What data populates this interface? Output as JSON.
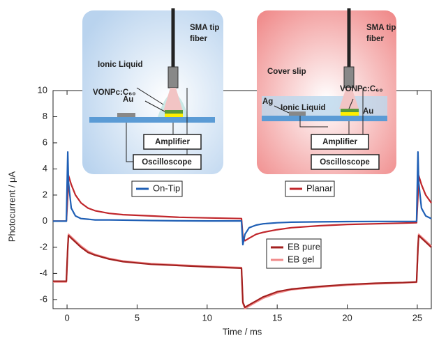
{
  "chart_data": {
    "type": "line",
    "x_label": "Time / ms",
    "y_label": "Photocurrent / μA",
    "xlim": [
      -1,
      26
    ],
    "ylim": [
      -6.7,
      10
    ],
    "xticks": [
      0,
      5,
      10,
      15,
      20,
      25
    ],
    "yticks": [
      -6,
      -4,
      -2,
      0,
      2,
      4,
      6,
      8,
      10
    ],
    "x": [
      -1,
      -0.05,
      0.05,
      0.1,
      0.3,
      0.6,
      1,
      1.5,
      2,
      3,
      4,
      6,
      8,
      10,
      12.45,
      12.55,
      12.7,
      13,
      13.5,
      14,
      15,
      16,
      18,
      20,
      22,
      24,
      24.95,
      25.05,
      25.1,
      25.3,
      25.6,
      26
    ],
    "series": [
      {
        "name": "On-Tip",
        "color": "#1f5fb5",
        "values": [
          0,
          0,
          5.3,
          3.0,
          1.0,
          0.4,
          0.2,
          0.15,
          0.1,
          0.1,
          0.08,
          0.05,
          0.03,
          0.02,
          0.02,
          -1.8,
          -1.0,
          -0.5,
          -0.3,
          -0.2,
          -0.12,
          -0.08,
          -0.05,
          -0.03,
          -0.02,
          -0.02,
          -0.02,
          5.3,
          3.0,
          1.0,
          0.4,
          0.2
        ]
      },
      {
        "name": "Planar",
        "color": "#c0262b",
        "values": [
          0,
          0,
          2.0,
          3.5,
          2.8,
          2.0,
          1.4,
          1.0,
          0.8,
          0.6,
          0.5,
          0.4,
          0.3,
          0.25,
          0.2,
          -1.2,
          -1.5,
          -1.3,
          -1.0,
          -0.85,
          -0.65,
          -0.5,
          -0.35,
          -0.25,
          -0.2,
          -0.15,
          -0.12,
          2.0,
          3.5,
          2.8,
          2.0,
          1.4
        ]
      },
      {
        "name": "EB pure",
        "color": "#a3201f",
        "values": [
          -4.6,
          -4.6,
          -2.0,
          -1.1,
          -1.3,
          -1.6,
          -2.0,
          -2.4,
          -2.6,
          -2.9,
          -3.1,
          -3.3,
          -3.4,
          -3.5,
          -3.6,
          -6.2,
          -6.6,
          -6.4,
          -6.1,
          -5.8,
          -5.4,
          -5.2,
          -5.0,
          -4.85,
          -4.75,
          -4.7,
          -4.65,
          -2.0,
          -1.1,
          -1.3,
          -1.6,
          -2.0
        ]
      },
      {
        "name": "EB gel",
        "color": "#f08a8a",
        "values": [
          -4.65,
          -4.65,
          -2.1,
          -1.0,
          -1.2,
          -1.5,
          -1.9,
          -2.3,
          -2.55,
          -2.85,
          -3.05,
          -3.25,
          -3.35,
          -3.45,
          -3.55,
          -6.3,
          -6.7,
          -6.5,
          -6.2,
          -5.9,
          -5.5,
          -5.25,
          -5.05,
          -4.9,
          -4.8,
          -4.72,
          -4.68,
          -2.1,
          -1.0,
          -1.2,
          -1.5,
          -1.9
        ]
      }
    ]
  },
  "diagrams": [
    {
      "fiber": [
        "SMA tip",
        "fiber"
      ],
      "liquid": "Ionic Liquid",
      "film": "VONPc:C₆₀",
      "electrode": "Au",
      "amplifier": "Amplifier",
      "scope": "Oscilloscope"
    },
    {
      "fiber": [
        "SMA tip",
        "fiber"
      ],
      "cover": "Cover slip",
      "counter": "Ag",
      "liquid": "Ionic Liquid",
      "film": "VONPc:C₆₀",
      "electrode": "Au",
      "amplifier": "Amplifier",
      "scope": "Oscilloscope"
    }
  ]
}
